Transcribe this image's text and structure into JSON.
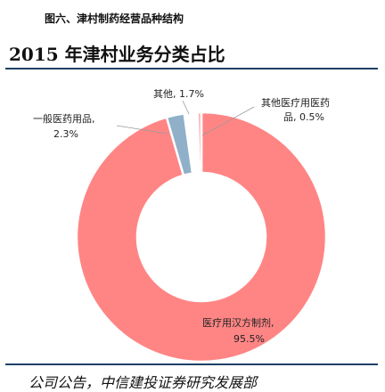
{
  "figure_caption": "图六、津村制药经营品种结构",
  "source_note": "公司公告，中信建投证券研究发展部",
  "chart_data": {
    "type": "pie",
    "donut": true,
    "title": "2015 年津村业务分类占比",
    "slices": [
      {
        "name": "医疗用汉方制剂",
        "value": 95.5,
        "pct_label": "95.5%",
        "color": "#ff8585"
      },
      {
        "name": "一般医药用品",
        "value": 2.3,
        "pct_label": "2.3%",
        "color": "#8fb0c8"
      },
      {
        "name": "其他",
        "value": 1.7,
        "pct_label": "1.7%",
        "color": "#ffffff"
      },
      {
        "name": "其他医疗用医药品",
        "value": 0.5,
        "pct_label": "0.5%",
        "color": "#ffb0b0"
      }
    ],
    "labels": {
      "main_line1": "医疗用汉方制剂,",
      "main_line2": "95.5%",
      "general_line1": "一般医药用品,",
      "general_line2": "2.3%",
      "other": "其他, 1.7%",
      "other_med_line1": "其他医疗用医药",
      "other_med_line2": "品, 0.5%"
    }
  }
}
